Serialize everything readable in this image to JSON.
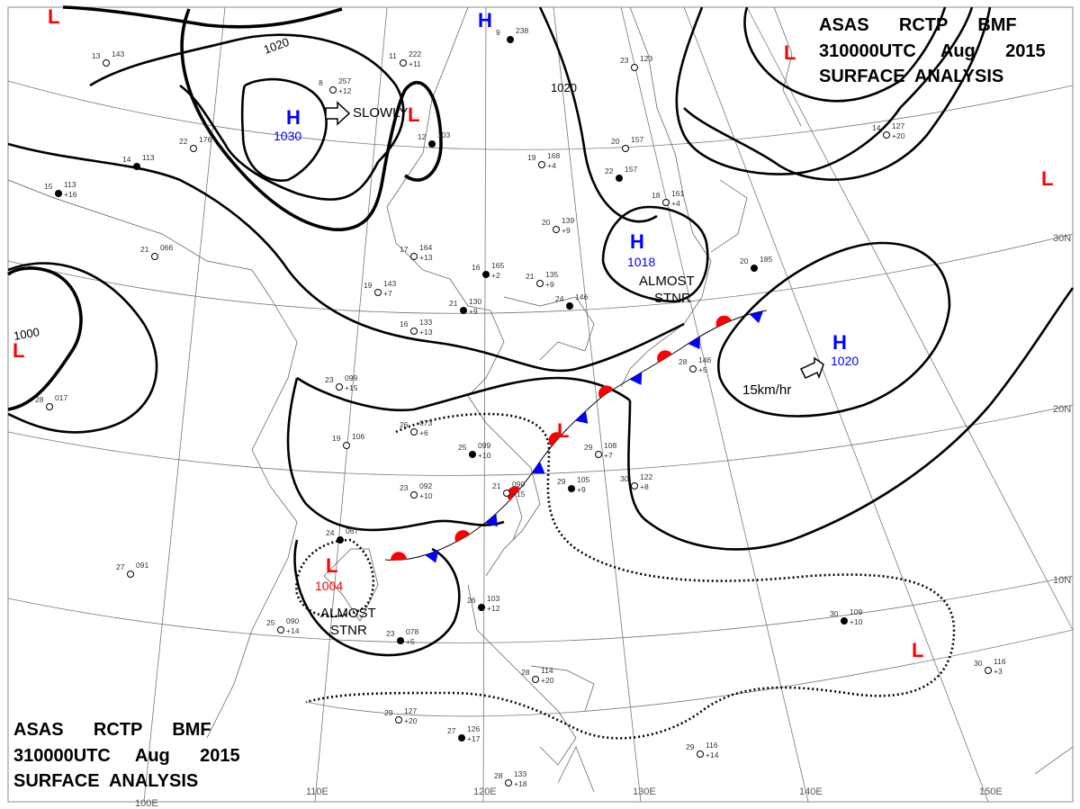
{
  "header": {
    "line1": "ASAS      RCTP      BMF",
    "line2": "310000UTC     Aug      2015",
    "line3": "SURFACE  ANALYSIS"
  },
  "footer": {
    "line1": "ASAS      RCTP      BMF",
    "line2": "310000UTC     Aug      2015",
    "line3": "SURFACE  ANALYSIS"
  },
  "colors": {
    "high": "#0000ff",
    "low": "#ff0000",
    "isobar": "#000000",
    "grid": "#777777"
  },
  "longitude_labels": [
    "100E",
    "110E",
    "120E",
    "130E",
    "140E",
    "150E"
  ],
  "latitude_labels": [
    "30N",
    "20N",
    "10N"
  ],
  "isobar_labels": [
    "1020",
    "1020",
    "1000"
  ],
  "pressure_centers": [
    {
      "type": "H",
      "value": "1030",
      "movement": "SLOWLY"
    },
    {
      "type": "H",
      "value": ""
    },
    {
      "type": "H",
      "value": "1018",
      "movement": "ALMOST STNR"
    },
    {
      "type": "H",
      "value": "1020",
      "movement": "15km/hr"
    },
    {
      "type": "L",
      "value": "1004",
      "movement": "ALMOST STNR"
    },
    {
      "type": "L",
      "value": ""
    },
    {
      "type": "L",
      "value": ""
    },
    {
      "type": "L",
      "value": ""
    },
    {
      "type": "L",
      "value": ""
    },
    {
      "type": "L",
      "value": ""
    },
    {
      "type": "L",
      "value": ""
    },
    {
      "type": "L",
      "value": ""
    }
  ],
  "movement_labels": {
    "slowly": "SLOWLY",
    "almost1a": "ALMOST",
    "almost1b": "STNR",
    "almost2a": "ALMOST",
    "almost2b": "STNR",
    "speed": "15km/hr"
  },
  "stations": [
    {
      "t": "9",
      "p": "238"
    },
    {
      "t": "11",
      "p": "222",
      "d": "+11"
    },
    {
      "t": "8",
      "p": "257",
      "d": "+12"
    },
    {
      "t": "12",
      "p": "103"
    },
    {
      "t": "19",
      "p": "168",
      "d": "+4"
    },
    {
      "t": "20",
      "p": "157"
    },
    {
      "t": "22",
      "p": "157"
    },
    {
      "t": "23",
      "p": "123"
    },
    {
      "t": "20",
      "p": "139",
      "d": "+9"
    },
    {
      "t": "16",
      "p": "165",
      "d": "+2"
    },
    {
      "t": "21",
      "p": "135",
      "d": "+9"
    },
    {
      "t": "17",
      "p": "164",
      "d": "+13"
    },
    {
      "t": "21",
      "p": "130",
      "d": "+9"
    },
    {
      "t": "16",
      "p": "133",
      "d": "+13"
    },
    {
      "t": "19",
      "p": "143",
      "d": "+7"
    },
    {
      "t": "24",
      "p": "146"
    },
    {
      "t": "23",
      "p": "099",
      "d": "+15"
    },
    {
      "t": "26",
      "p": "073",
      "d": "+6"
    },
    {
      "t": "25",
      "p": "099",
      "d": "+10"
    },
    {
      "t": "19",
      "p": "106"
    },
    {
      "t": "23",
      "p": "092",
      "d": "+10"
    },
    {
      "t": "29",
      "p": "105",
      "d": "+9"
    },
    {
      "t": "29",
      "p": "108",
      "d": "+7"
    },
    {
      "t": "30",
      "p": "122",
      "d": "+8"
    },
    {
      "t": "24",
      "p": "067"
    },
    {
      "t": "27",
      "p": "091"
    },
    {
      "t": "25",
      "p": "090",
      "d": "+14"
    },
    {
      "t": "20",
      "p": "185"
    },
    {
      "t": "14",
      "p": "127",
      "d": "+20"
    },
    {
      "t": "28",
      "p": "146",
      "d": "+5"
    },
    {
      "t": "30",
      "p": "109",
      "d": "+10"
    },
    {
      "t": "30",
      "p": "116",
      "d": "+3"
    },
    {
      "t": "29",
      "p": "127",
      "d": "+20"
    },
    {
      "t": "27",
      "p": "126",
      "d": "+17"
    },
    {
      "t": "28",
      "p": "133",
      "d": "+18"
    },
    {
      "t": "29",
      "p": "116",
      "d": "+14"
    },
    {
      "t": "26",
      "p": "103",
      "d": "+12"
    },
    {
      "t": "28",
      "p": "114",
      "d": "+20"
    },
    {
      "t": "21",
      "p": "090",
      "d": "+15"
    },
    {
      "t": "23",
      "p": "078",
      "d": "+5"
    },
    {
      "t": "28",
      "p": "017"
    },
    {
      "t": "21",
      "p": "066"
    },
    {
      "t": "15",
      "p": "113",
      "d": "+16"
    },
    {
      "t": "13",
      "p": "143"
    },
    {
      "t": "22",
      "p": "176"
    },
    {
      "t": "14",
      "p": "113"
    },
    {
      "t": "18",
      "p": "161",
      "d": "+4"
    }
  ]
}
